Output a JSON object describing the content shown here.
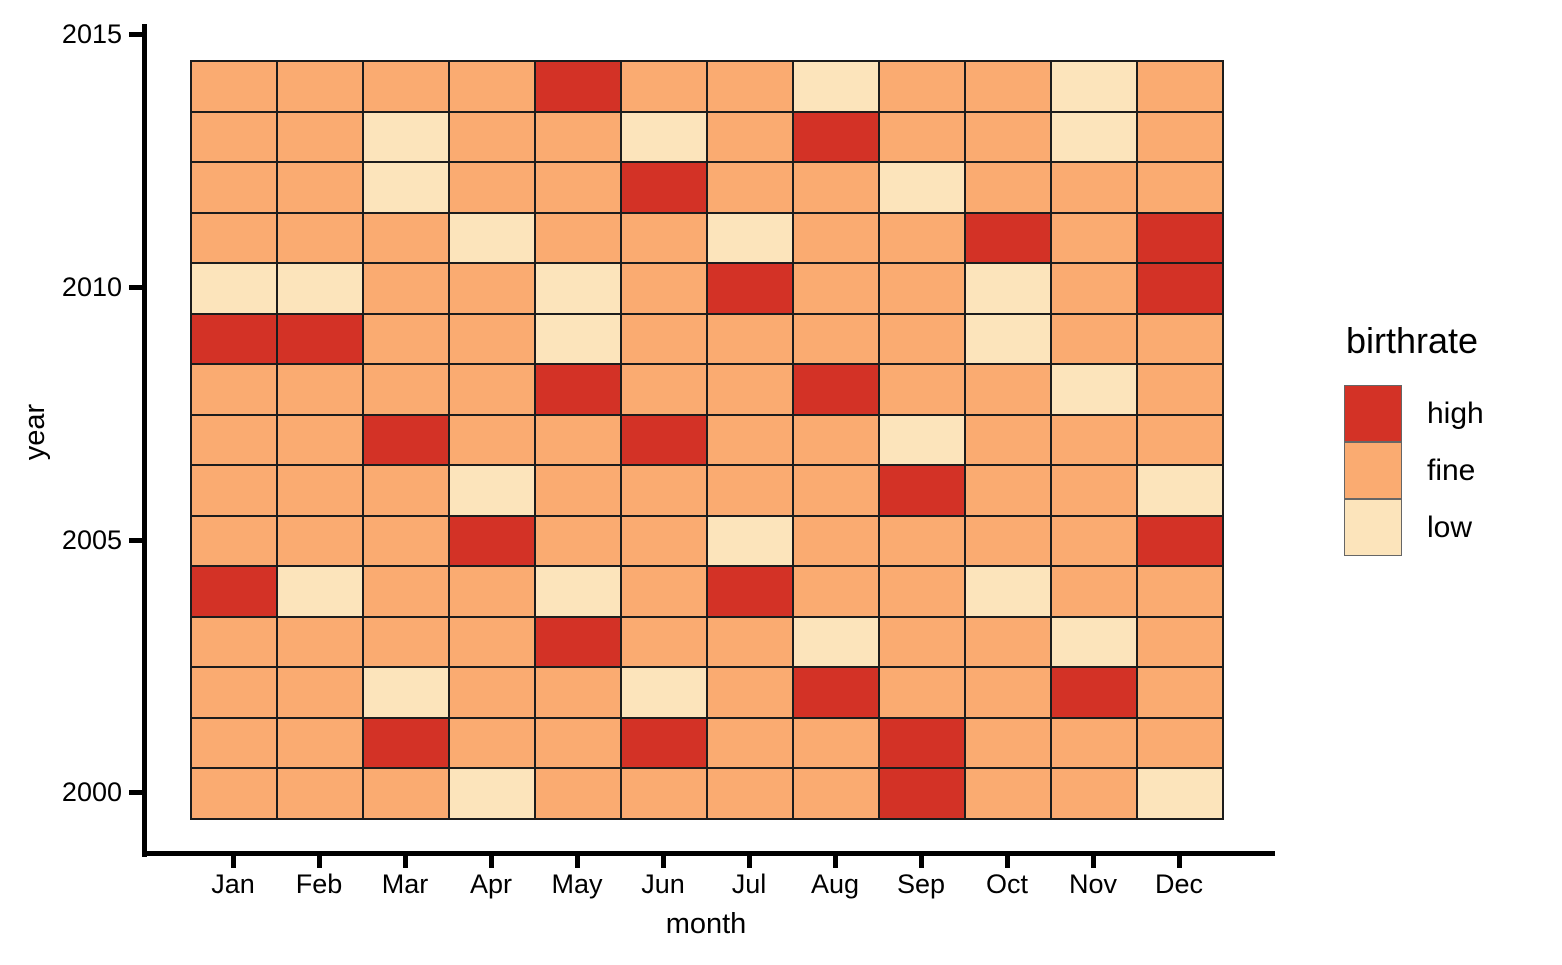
{
  "chart_data": {
    "type": "heatmap",
    "title": "",
    "xlabel": "month",
    "ylabel": "year",
    "x_categories": [
      "Jan",
      "Feb",
      "Mar",
      "Apr",
      "May",
      "Jun",
      "Jul",
      "Aug",
      "Sep",
      "Oct",
      "Nov",
      "Dec"
    ],
    "y_tick_labels": [
      "2015",
      "2010",
      "2005",
      "2000"
    ],
    "y_rows_top_to_bottom": [
      2014,
      2013,
      2012,
      2011,
      2010,
      2009,
      2008,
      2007,
      2006,
      2005,
      2004,
      2003,
      2002,
      2001,
      2000
    ],
    "grid": "off",
    "legend_position": "right",
    "rows": [
      {
        "year": 2014,
        "values": [
          "fine",
          "fine",
          "fine",
          "fine",
          "high",
          "fine",
          "fine",
          "low",
          "fine",
          "fine",
          "low",
          "fine"
        ]
      },
      {
        "year": 2013,
        "values": [
          "fine",
          "fine",
          "low",
          "fine",
          "fine",
          "low",
          "fine",
          "high",
          "fine",
          "fine",
          "low",
          "fine"
        ]
      },
      {
        "year": 2012,
        "values": [
          "fine",
          "fine",
          "low",
          "fine",
          "fine",
          "high",
          "fine",
          "fine",
          "low",
          "fine",
          "fine",
          "fine"
        ]
      },
      {
        "year": 2011,
        "values": [
          "fine",
          "fine",
          "fine",
          "low",
          "fine",
          "fine",
          "low",
          "fine",
          "fine",
          "high",
          "fine",
          "high"
        ]
      },
      {
        "year": 2010,
        "values": [
          "low",
          "low",
          "fine",
          "fine",
          "low",
          "fine",
          "high",
          "fine",
          "fine",
          "low",
          "fine",
          "high"
        ]
      },
      {
        "year": 2009,
        "values": [
          "high",
          "high",
          "fine",
          "fine",
          "low",
          "fine",
          "fine",
          "fine",
          "fine",
          "low",
          "fine",
          "fine"
        ]
      },
      {
        "year": 2008,
        "values": [
          "fine",
          "fine",
          "fine",
          "fine",
          "high",
          "fine",
          "fine",
          "high",
          "fine",
          "fine",
          "low",
          "fine"
        ]
      },
      {
        "year": 2007,
        "values": [
          "fine",
          "fine",
          "high",
          "fine",
          "fine",
          "high",
          "fine",
          "fine",
          "low",
          "fine",
          "fine",
          "fine"
        ]
      },
      {
        "year": 2006,
        "values": [
          "fine",
          "fine",
          "fine",
          "low",
          "fine",
          "fine",
          "fine",
          "fine",
          "high",
          "fine",
          "fine",
          "low"
        ]
      },
      {
        "year": 2005,
        "values": [
          "fine",
          "fine",
          "fine",
          "high",
          "fine",
          "fine",
          "low",
          "fine",
          "fine",
          "fine",
          "fine",
          "high"
        ]
      },
      {
        "year": 2004,
        "values": [
          "high",
          "low",
          "fine",
          "fine",
          "low",
          "fine",
          "high",
          "fine",
          "fine",
          "low",
          "fine",
          "fine"
        ]
      },
      {
        "year": 2003,
        "values": [
          "fine",
          "fine",
          "fine",
          "fine",
          "high",
          "fine",
          "fine",
          "low",
          "fine",
          "fine",
          "low",
          "fine"
        ]
      },
      {
        "year": 2002,
        "values": [
          "fine",
          "fine",
          "low",
          "fine",
          "fine",
          "low",
          "fine",
          "high",
          "fine",
          "fine",
          "high",
          "fine"
        ]
      },
      {
        "year": 2001,
        "values": [
          "fine",
          "fine",
          "high",
          "fine",
          "fine",
          "high",
          "fine",
          "fine",
          "high",
          "fine",
          "fine",
          "fine"
        ]
      },
      {
        "year": 2000,
        "values": [
          "fine",
          "fine",
          "fine",
          "low",
          "fine",
          "fine",
          "fine",
          "fine",
          "high",
          "fine",
          "fine",
          "low"
        ]
      }
    ],
    "legend": {
      "title": "birthrate",
      "items": [
        {
          "label": "high",
          "color": "#d33226"
        },
        {
          "label": "fine",
          "color": "#faab71"
        },
        {
          "label": "low",
          "color": "#fce4bb"
        }
      ]
    },
    "colors": {
      "high": "#d33226",
      "fine": "#faab71",
      "low": "#fce4bb"
    },
    "cell_border_color": "#1c1c1c",
    "axis_color": "#000000"
  }
}
